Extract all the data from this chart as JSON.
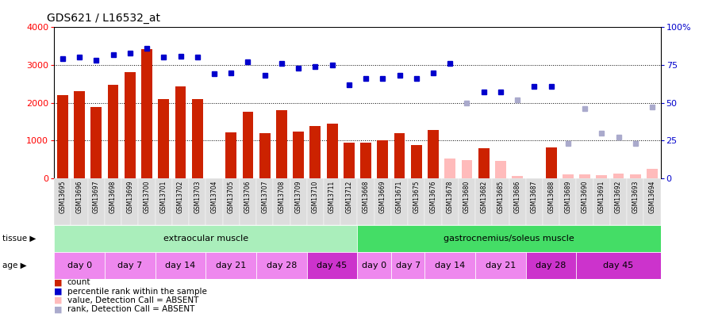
{
  "title": "GDS621 / L16532_at",
  "samples": [
    "GSM13695",
    "GSM13696",
    "GSM13697",
    "GSM13698",
    "GSM13699",
    "GSM13700",
    "GSM13701",
    "GSM13702",
    "GSM13703",
    "GSM13704",
    "GSM13705",
    "GSM13706",
    "GSM13707",
    "GSM13708",
    "GSM13709",
    "GSM13710",
    "GSM13711",
    "GSM13712",
    "GSM13668",
    "GSM13669",
    "GSM13671",
    "GSM13675",
    "GSM13676",
    "GSM13678",
    "GSM13680",
    "GSM13682",
    "GSM13685",
    "GSM13686",
    "GSM13687",
    "GSM13688",
    "GSM13689",
    "GSM13690",
    "GSM13691",
    "GSM13692",
    "GSM13693",
    "GSM13694"
  ],
  "count": [
    2200,
    2300,
    1880,
    2480,
    2820,
    3420,
    2100,
    2440,
    2100,
    null,
    1220,
    1760,
    1200,
    1800,
    1240,
    1380,
    1440,
    950,
    950,
    1010,
    1200,
    870,
    1280,
    null,
    null,
    790,
    null,
    null,
    null,
    820,
    null,
    null,
    null,
    null,
    null,
    null
  ],
  "count_absent": [
    null,
    null,
    null,
    null,
    null,
    null,
    null,
    null,
    null,
    null,
    null,
    null,
    null,
    null,
    null,
    null,
    null,
    null,
    null,
    null,
    null,
    null,
    null,
    520,
    470,
    null,
    460,
    60,
    null,
    null,
    100,
    90,
    70,
    120,
    100,
    250
  ],
  "percentile": [
    79,
    80,
    78,
    82,
    83,
    86,
    80,
    81,
    80,
    69,
    70,
    77,
    68,
    76,
    73,
    74,
    75,
    62,
    66,
    66,
    68,
    66,
    70,
    76,
    null,
    57,
    57,
    null,
    61,
    61,
    null,
    null,
    null,
    null,
    null,
    null
  ],
  "percentile_absent": [
    null,
    null,
    null,
    null,
    null,
    null,
    null,
    null,
    null,
    null,
    null,
    null,
    null,
    null,
    null,
    null,
    null,
    null,
    null,
    null,
    null,
    null,
    null,
    null,
    50,
    null,
    null,
    52,
    null,
    null,
    23,
    46,
    30,
    27,
    23,
    47
  ],
  "tissue_groups": [
    {
      "label": "extraocular muscle",
      "start": 0,
      "end": 18,
      "color": "#aaeebb"
    },
    {
      "label": "gastrocnemius/soleus muscle",
      "start": 18,
      "end": 36,
      "color": "#44dd66"
    }
  ],
  "age_groups": [
    {
      "label": "day 0",
      "start": 0,
      "end": 3,
      "color": "#ee88ee"
    },
    {
      "label": "day 7",
      "start": 3,
      "end": 6,
      "color": "#ee88ee"
    },
    {
      "label": "day 14",
      "start": 6,
      "end": 9,
      "color": "#ee88ee"
    },
    {
      "label": "day 21",
      "start": 9,
      "end": 12,
      "color": "#ee88ee"
    },
    {
      "label": "day 28",
      "start": 12,
      "end": 15,
      "color": "#ee88ee"
    },
    {
      "label": "day 45",
      "start": 15,
      "end": 18,
      "color": "#cc33cc"
    },
    {
      "label": "day 0",
      "start": 18,
      "end": 20,
      "color": "#ee88ee"
    },
    {
      "label": "day 7",
      "start": 20,
      "end": 22,
      "color": "#ee88ee"
    },
    {
      "label": "day 14",
      "start": 22,
      "end": 25,
      "color": "#ee88ee"
    },
    {
      "label": "day 21",
      "start": 25,
      "end": 28,
      "color": "#ee88ee"
    },
    {
      "label": "day 28",
      "start": 28,
      "end": 31,
      "color": "#cc33cc"
    },
    {
      "label": "day 45",
      "start": 31,
      "end": 36,
      "color": "#cc33cc"
    }
  ],
  "ylim_left": [
    0,
    4000
  ],
  "ylim_right": [
    0,
    100
  ],
  "yticks_left": [
    0,
    1000,
    2000,
    3000,
    4000
  ],
  "yticks_right": [
    0,
    25,
    50,
    75,
    100
  ],
  "bar_color": "#cc2200",
  "bar_absent_color": "#ffbbbb",
  "dot_color": "#0000cc",
  "dot_absent_color": "#aaaacc",
  "legend": [
    {
      "label": "count",
      "color": "#cc2200"
    },
    {
      "label": "percentile rank within the sample",
      "color": "#0000cc"
    },
    {
      "label": "value, Detection Call = ABSENT",
      "color": "#ffbbbb"
    },
    {
      "label": "rank, Detection Call = ABSENT",
      "color": "#aaaacc"
    }
  ],
  "xtick_bg": "#dddddd",
  "fig_bg": "#ffffff"
}
